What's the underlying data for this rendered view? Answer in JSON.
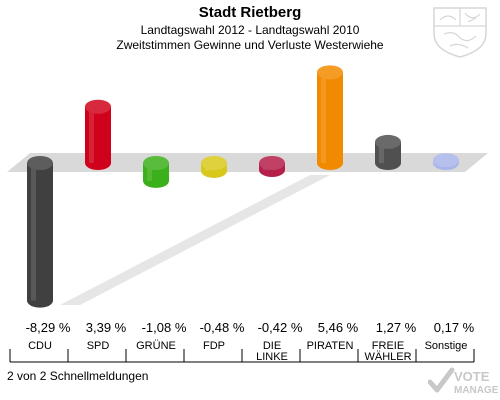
{
  "header": {
    "title": "Stadt Rietberg",
    "subtitle1": "Landtagswahl 2012 - Landtagswahl 2010",
    "subtitle2": "Zweitstimmen Gewinne und Verluste Westerwiehe"
  },
  "footer": {
    "text": "2 von 2 Schnellmeldungen"
  },
  "logo": {
    "text1": "VOTE",
    "text2": "MANAGER"
  },
  "crest": {
    "icon": "nrw-coat-of-arms-icon"
  },
  "chart_data": {
    "type": "bar",
    "title": "Stadt Rietberg",
    "subtitle": "Zweitstimmen Gewinne und Verluste Westerwiehe",
    "categories": [
      "CDU",
      "SPD",
      "GRÜNE",
      "FDP",
      "DIE LINKE",
      "PIRATEN",
      "FREIE WÄHLER",
      "Sonstige"
    ],
    "category_lines": [
      [
        "CDU"
      ],
      [
        "SPD"
      ],
      [
        "GRÜNE"
      ],
      [
        "FDP"
      ],
      [
        "DIE",
        "LINKE"
      ],
      [
        "PIRATEN"
      ],
      [
        "FREIE",
        "WÄHLER"
      ],
      [
        "Sonstige"
      ]
    ],
    "values": [
      -8.29,
      3.39,
      -1.08,
      -0.48,
      -0.42,
      5.46,
      1.27,
      0.17
    ],
    "value_labels": [
      "-8,29 %",
      "3,39 %",
      "-1,08 %",
      "-0,48 %",
      "-0,42 %",
      "5,46 %",
      "1,27 %",
      "0,17 %"
    ],
    "colors": [
      "#404040",
      "#d0021b",
      "#3cb01a",
      "#d9c81c",
      "#b5204a",
      "#f28a00",
      "#505050",
      "#a9b5ea"
    ],
    "units": "%",
    "grid": false,
    "legend": "none"
  }
}
